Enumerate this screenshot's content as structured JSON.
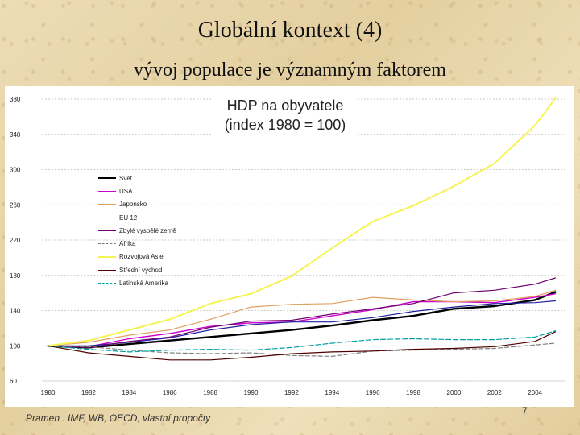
{
  "slide": {
    "title": "Globální kontext (4)",
    "subtitle": "vývoj populace je významným faktorem",
    "source": "Pramen : IMF, WB, OECD, vlastní propočty",
    "page_number": "7"
  },
  "chart_data": {
    "type": "line",
    "title_line1": "HDP na obyvatele",
    "title_line2": "(index 1980 = 100)",
    "x": [
      1980,
      1982,
      1984,
      1986,
      1988,
      1990,
      1992,
      1994,
      1996,
      1998,
      2000,
      2002,
      2004,
      2005
    ],
    "x_ticks": [
      "1980",
      "1982",
      "1984",
      "1986",
      "1988",
      "1990",
      "1992",
      "1994",
      "1996",
      "1998",
      "2000",
      "2002",
      "2004"
    ],
    "y_ticks": [
      "60",
      "100",
      "140",
      "180",
      "220",
      "260",
      "300",
      "340",
      "380"
    ],
    "ylim": [
      60,
      380
    ],
    "xlim": [
      1979.7,
      2005.5
    ],
    "grid": "dotted horizontal",
    "legend_position": "left",
    "series": [
      {
        "name": "Svět",
        "color": "#000000",
        "width": 2.4,
        "dash": "",
        "values": [
          100,
          98,
          102,
          106,
          110,
          114,
          118,
          123,
          129,
          134,
          142,
          145,
          152,
          161
        ]
      },
      {
        "name": "USA",
        "color": "#cc00cc",
        "width": 1.4,
        "dash": "",
        "values": [
          100,
          99,
          108,
          114,
          122,
          126,
          127,
          134,
          141,
          150,
          150,
          149,
          155,
          159
        ]
      },
      {
        "name": "Japonsko",
        "color": "#e0a060",
        "width": 1.2,
        "dash": "",
        "values": [
          100,
          104,
          112,
          118,
          130,
          144,
          147,
          148,
          155,
          152,
          150,
          151,
          156,
          163
        ]
      },
      {
        "name": "EU 12",
        "color": "#2020a0",
        "width": 1.2,
        "dash": "",
        "values": [
          100,
          100,
          104,
          109,
          118,
          124,
          127,
          127,
          132,
          139,
          144,
          148,
          149,
          151
        ]
      },
      {
        "name": "Zbylé vyspělé země",
        "color": "#700070",
        "width": 1.2,
        "dash": "",
        "values": [
          100,
          98,
          105,
          110,
          121,
          128,
          129,
          136,
          142,
          148,
          160,
          163,
          170,
          177
        ]
      },
      {
        "name": "Afrika",
        "color": "#808080",
        "width": 1.2,
        "dash": "5,3",
        "values": [
          100,
          99,
          95,
          92,
          91,
          92,
          89,
          88,
          94,
          95,
          96,
          97,
          101,
          103
        ]
      },
      {
        "name": "Rozvojová Asie",
        "color": "#f4f452",
        "width": 2.0,
        "dash": "",
        "values": [
          100,
          106,
          118,
          130,
          148,
          159,
          179,
          211,
          241,
          259,
          281,
          307,
          350,
          381
        ]
      },
      {
        "name": "Střední východ",
        "color": "#500000",
        "width": 1.2,
        "dash": "",
        "values": [
          100,
          92,
          88,
          84,
          84,
          87,
          91,
          93,
          94,
          96,
          97,
          99,
          105,
          116
        ]
      },
      {
        "name": "Latinská Amerika",
        "color": "#00a0a0",
        "width": 1.2,
        "dash": "6,3",
        "values": [
          100,
          96,
          93,
          95,
          96,
          95,
          98,
          103,
          107,
          108,
          107,
          107,
          110,
          117
        ]
      }
    ]
  }
}
